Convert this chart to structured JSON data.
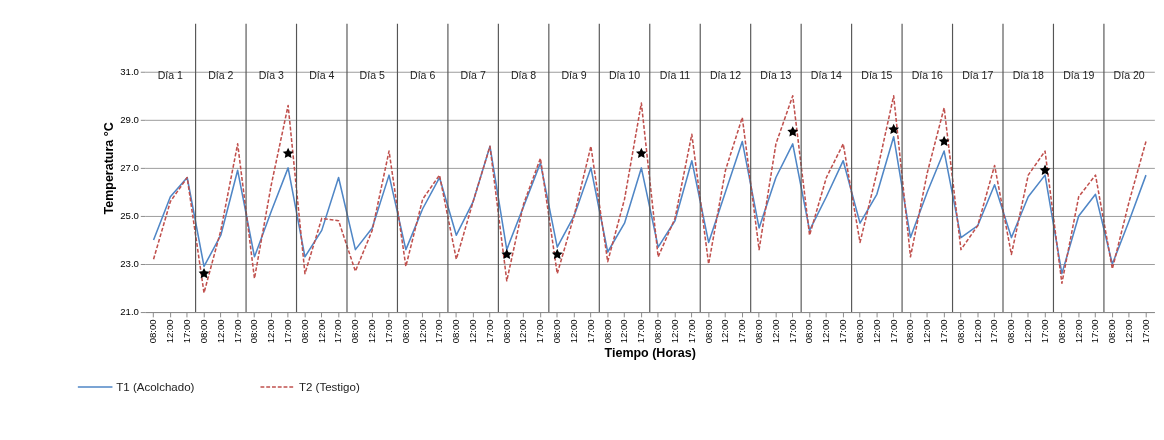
{
  "chart_data": {
    "type": "line",
    "xlabel": "Tiempo (Horas)",
    "ylabel": "Temperatura °C",
    "categories": [
      "08:00",
      "12:00",
      "17:00",
      "08:00",
      "12:00",
      "17:00",
      "08:00",
      "12:00",
      "17:00",
      "08:00",
      "12:00",
      "17:00",
      "08:00",
      "12:00",
      "17:00",
      "08:00",
      "12:00",
      "17:00",
      "08:00",
      "12:00",
      "17:00",
      "08:00",
      "12:00",
      "17:00",
      "08:00",
      "12:00",
      "17:00",
      "08:00",
      "12:00",
      "17:00",
      "08:00",
      "12:00",
      "17:00",
      "08:00",
      "12:00",
      "17:00",
      "08:00",
      "12:00",
      "17:00",
      "08:00",
      "12:00",
      "17:00",
      "08:00",
      "12:00",
      "17:00",
      "08:00",
      "12:00",
      "17:00",
      "08:00",
      "12:00",
      "17:00",
      "08:00",
      "12:00",
      "17:00",
      "08:00",
      "12:00",
      "17:00",
      "08:00",
      "12:00",
      "17:00"
    ],
    "series": [
      {
        "name": "T1 (Acolchado)",
        "color": "#4f86c6",
        "line_style": "solid",
        "values": [
          24.0,
          25.8,
          26.6,
          22.9,
          24.2,
          26.9,
          23.3,
          25.2,
          27.0,
          23.3,
          24.4,
          26.6,
          23.6,
          24.5,
          26.7,
          23.6,
          25.3,
          26.6,
          24.2,
          25.6,
          27.9,
          23.6,
          25.4,
          27.2,
          23.7,
          25.0,
          27.0,
          23.5,
          24.7,
          27.0,
          23.7,
          24.8,
          27.3,
          23.9,
          26.0,
          28.1,
          24.5,
          26.6,
          28.0,
          24.4,
          25.8,
          27.3,
          24.7,
          25.9,
          28.3,
          24.1,
          26.0,
          27.7,
          24.1,
          24.6,
          26.3,
          24.1,
          25.8,
          26.7,
          22.6,
          25.0,
          25.9,
          23.0,
          24.8,
          26.7
        ]
      },
      {
        "name": "T2 (Testigo)",
        "color": "#c0504d",
        "line_style": "dashed",
        "values": [
          23.2,
          25.6,
          26.6,
          21.8,
          24.4,
          28.0,
          22.4,
          26.3,
          29.6,
          22.6,
          24.9,
          24.8,
          22.7,
          24.4,
          27.7,
          22.9,
          25.7,
          26.7,
          23.2,
          25.6,
          27.9,
          22.3,
          25.5,
          27.4,
          22.6,
          25.0,
          27.9,
          23.1,
          25.7,
          29.7,
          23.3,
          24.9,
          28.4,
          23.0,
          26.9,
          29.1,
          23.6,
          28.0,
          30.0,
          24.2,
          26.6,
          28.0,
          23.9,
          26.8,
          30.0,
          23.3,
          26.8,
          29.5,
          23.6,
          24.6,
          27.1,
          23.4,
          26.7,
          27.7,
          22.2,
          25.8,
          26.7,
          22.8,
          25.6,
          28.1
        ]
      },
      {
        "type": "scatter",
        "marker": "star",
        "color": "#000000",
        "values": [
          null,
          null,
          null,
          22.6,
          null,
          null,
          null,
          null,
          27.6,
          null,
          null,
          null,
          null,
          null,
          null,
          null,
          null,
          null,
          null,
          null,
          null,
          23.4,
          null,
          null,
          23.4,
          null,
          null,
          null,
          null,
          27.6,
          null,
          null,
          null,
          null,
          null,
          null,
          null,
          null,
          28.5,
          null,
          null,
          null,
          null,
          null,
          28.6,
          null,
          null,
          28.1,
          null,
          null,
          null,
          null,
          null,
          26.9,
          null,
          null,
          null,
          null,
          null,
          null
        ]
      }
    ],
    "annotations": [
      "Día 1",
      "Día 2",
      "Día 3",
      "Día 4",
      "Día 5",
      "Día 6",
      "Día 7",
      "Día 8",
      "Día 9",
      "Día 10",
      "Día 11",
      "Día 12",
      "Día 13",
      "Día 14",
      "Día 15",
      "Día 16",
      "Día 17",
      "Día 18",
      "Día 19",
      "Día 20"
    ],
    "ylim": [
      21,
      33
    ],
    "yticks": [
      {
        "value": 21,
        "label": "21.0"
      },
      {
        "value": 23,
        "label": "23.0"
      },
      {
        "value": 25,
        "label": "25.0"
      },
      {
        "value": 27,
        "label": "27.0"
      },
      {
        "value": 29,
        "label": "29.0"
      },
      {
        "value": 31,
        "label": "31.0"
      }
    ],
    "grid": "y",
    "legend": "bottom left"
  }
}
